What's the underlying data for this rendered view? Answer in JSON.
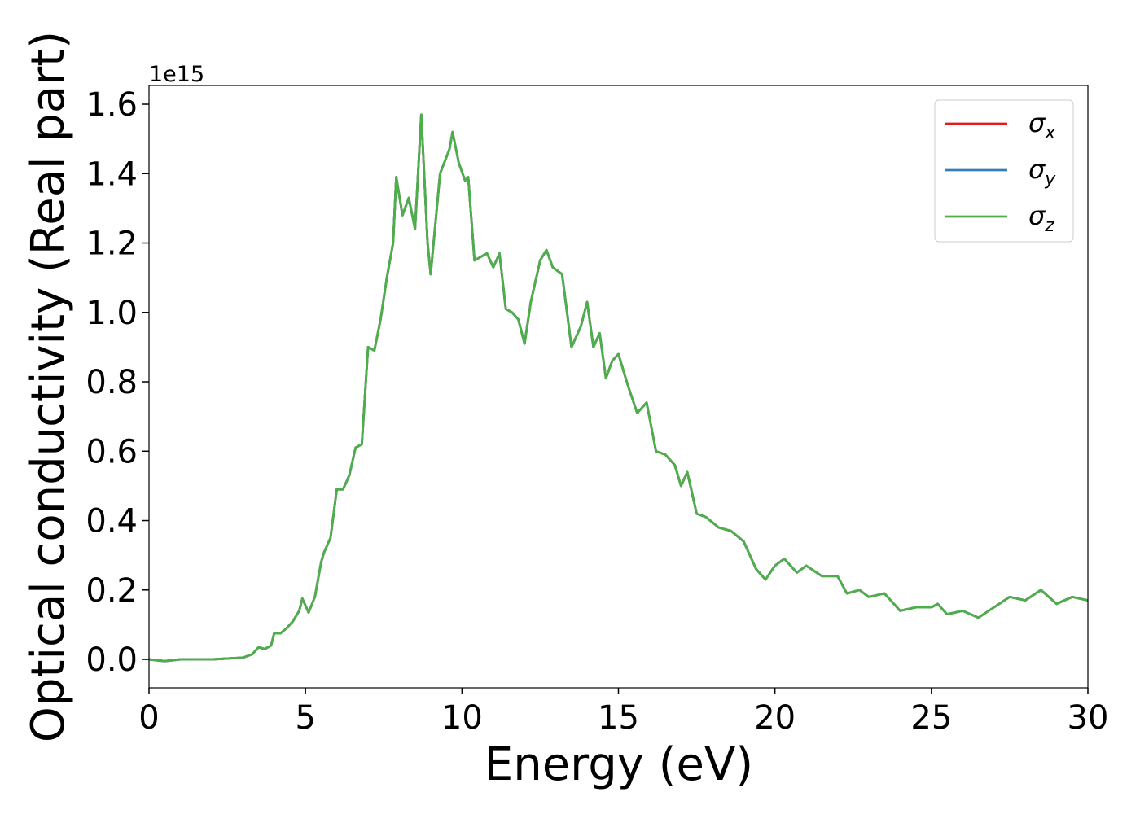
{
  "chart_data": {
    "type": "line",
    "ylabel": "Optical conductivity (Real part)",
    "xlabel": "Energy (eV)",
    "offset_text": "1e15",
    "xlim": [
      0,
      30
    ],
    "xticks": [
      0,
      5,
      10,
      15,
      20,
      25,
      30
    ],
    "ylim": [
      -0.082,
      1.654
    ],
    "yticks": [
      {
        "value": 0,
        "label": "0.0"
      },
      0.2,
      0.4,
      0.6,
      0.8,
      {
        "value": 1,
        "label": "1.0"
      },
      1.2,
      1.4,
      1.6
    ],
    "legend": "upper right",
    "x": [
      0,
      0.5,
      1,
      2,
      3,
      3.3,
      3.5,
      3.7,
      3.9,
      4.0,
      4.2,
      4.4,
      4.6,
      4.8,
      4.9,
      5.1,
      5.3,
      5.5,
      5.6,
      5.8,
      6.0,
      6.2,
      6.4,
      6.6,
      6.8,
      7.0,
      7.2,
      7.4,
      7.6,
      7.8,
      7.9,
      8.1,
      8.3,
      8.5,
      8.7,
      8.9,
      9.0,
      9.3,
      9.6,
      9.7,
      9.9,
      10.1,
      10.2,
      10.4,
      10.6,
      10.8,
      11.0,
      11.2,
      11.4,
      11.6,
      11.8,
      12.0,
      12.2,
      12.5,
      12.7,
      12.9,
      13.2,
      13.5,
      13.8,
      14.0,
      14.2,
      14.4,
      14.6,
      14.8,
      15.0,
      15.3,
      15.6,
      15.9,
      16.2,
      16.5,
      16.8,
      17.0,
      17.2,
      17.5,
      17.8,
      18.2,
      18.6,
      19.0,
      19.4,
      19.7,
      20.0,
      20.3,
      20.7,
      21.0,
      21.5,
      22.0,
      22.3,
      22.7,
      23.0,
      23.5,
      24.0,
      24.5,
      25.0,
      25.2,
      25.5,
      26.0,
      26.5,
      27.0,
      27.5,
      28.0,
      28.5,
      29.0,
      29.5,
      30.0
    ],
    "series": [
      {
        "name": "σx",
        "color": "#e41a1c",
        "values": [
          0,
          -0.005,
          0,
          0,
          0.005,
          0.015,
          0.035,
          0.03,
          0.04,
          0.075,
          0.075,
          0.09,
          0.11,
          0.14,
          0.175,
          0.135,
          0.18,
          0.28,
          0.31,
          0.35,
          0.49,
          0.49,
          0.53,
          0.61,
          0.62,
          0.9,
          0.89,
          0.98,
          1.1,
          1.2,
          1.39,
          1.28,
          1.33,
          1.24,
          1.57,
          1.2,
          1.11,
          1.4,
          1.47,
          1.52,
          1.43,
          1.38,
          1.39,
          1.15,
          1.16,
          1.17,
          1.13,
          1.17,
          1.01,
          1.0,
          0.98,
          0.91,
          1.03,
          1.15,
          1.18,
          1.13,
          1.11,
          0.9,
          0.96,
          1.03,
          0.9,
          0.94,
          0.81,
          0.86,
          0.88,
          0.79,
          0.71,
          0.74,
          0.6,
          0.59,
          0.56,
          0.5,
          0.54,
          0.42,
          0.41,
          0.38,
          0.37,
          0.34,
          0.26,
          0.23,
          0.27,
          0.29,
          0.25,
          0.27,
          0.24,
          0.24,
          0.19,
          0.2,
          0.18,
          0.19,
          0.14,
          0.15,
          0.15,
          0.16,
          0.13,
          0.14,
          0.12,
          0.15,
          0.18,
          0.17,
          0.2,
          0.16,
          0.18,
          0.17
        ]
      },
      {
        "name": "σy",
        "color": "#377eb8",
        "values": [
          0,
          -0.005,
          0,
          0,
          0.005,
          0.015,
          0.035,
          0.03,
          0.04,
          0.075,
          0.075,
          0.09,
          0.11,
          0.14,
          0.175,
          0.135,
          0.18,
          0.28,
          0.31,
          0.35,
          0.49,
          0.49,
          0.53,
          0.61,
          0.62,
          0.9,
          0.89,
          0.98,
          1.1,
          1.2,
          1.39,
          1.28,
          1.33,
          1.24,
          1.57,
          1.2,
          1.11,
          1.4,
          1.47,
          1.52,
          1.43,
          1.38,
          1.39,
          1.15,
          1.16,
          1.17,
          1.13,
          1.17,
          1.01,
          1.0,
          0.98,
          0.91,
          1.03,
          1.15,
          1.18,
          1.13,
          1.11,
          0.9,
          0.96,
          1.03,
          0.9,
          0.94,
          0.81,
          0.86,
          0.88,
          0.79,
          0.71,
          0.74,
          0.6,
          0.59,
          0.56,
          0.5,
          0.54,
          0.42,
          0.41,
          0.38,
          0.37,
          0.34,
          0.26,
          0.23,
          0.27,
          0.29,
          0.25,
          0.27,
          0.24,
          0.24,
          0.19,
          0.2,
          0.18,
          0.19,
          0.14,
          0.15,
          0.15,
          0.16,
          0.13,
          0.14,
          0.12,
          0.15,
          0.18,
          0.17,
          0.2,
          0.16,
          0.18,
          0.17
        ]
      },
      {
        "name": "σz",
        "color": "#4daf4a",
        "values": [
          0,
          -0.005,
          0,
          0,
          0.005,
          0.015,
          0.035,
          0.03,
          0.04,
          0.075,
          0.075,
          0.09,
          0.11,
          0.14,
          0.175,
          0.135,
          0.18,
          0.28,
          0.31,
          0.35,
          0.49,
          0.49,
          0.53,
          0.61,
          0.62,
          0.9,
          0.89,
          0.98,
          1.1,
          1.2,
          1.39,
          1.28,
          1.33,
          1.24,
          1.57,
          1.2,
          1.11,
          1.4,
          1.47,
          1.52,
          1.43,
          1.38,
          1.39,
          1.15,
          1.16,
          1.17,
          1.13,
          1.17,
          1.01,
          1.0,
          0.98,
          0.91,
          1.03,
          1.15,
          1.18,
          1.13,
          1.11,
          0.9,
          0.96,
          1.03,
          0.9,
          0.94,
          0.81,
          0.86,
          0.88,
          0.79,
          0.71,
          0.74,
          0.6,
          0.59,
          0.56,
          0.5,
          0.54,
          0.42,
          0.41,
          0.38,
          0.37,
          0.34,
          0.26,
          0.23,
          0.27,
          0.29,
          0.25,
          0.27,
          0.24,
          0.24,
          0.19,
          0.2,
          0.18,
          0.19,
          0.14,
          0.15,
          0.15,
          0.16,
          0.13,
          0.14,
          0.12,
          0.15,
          0.18,
          0.17,
          0.2,
          0.16,
          0.18,
          0.17
        ]
      }
    ]
  }
}
